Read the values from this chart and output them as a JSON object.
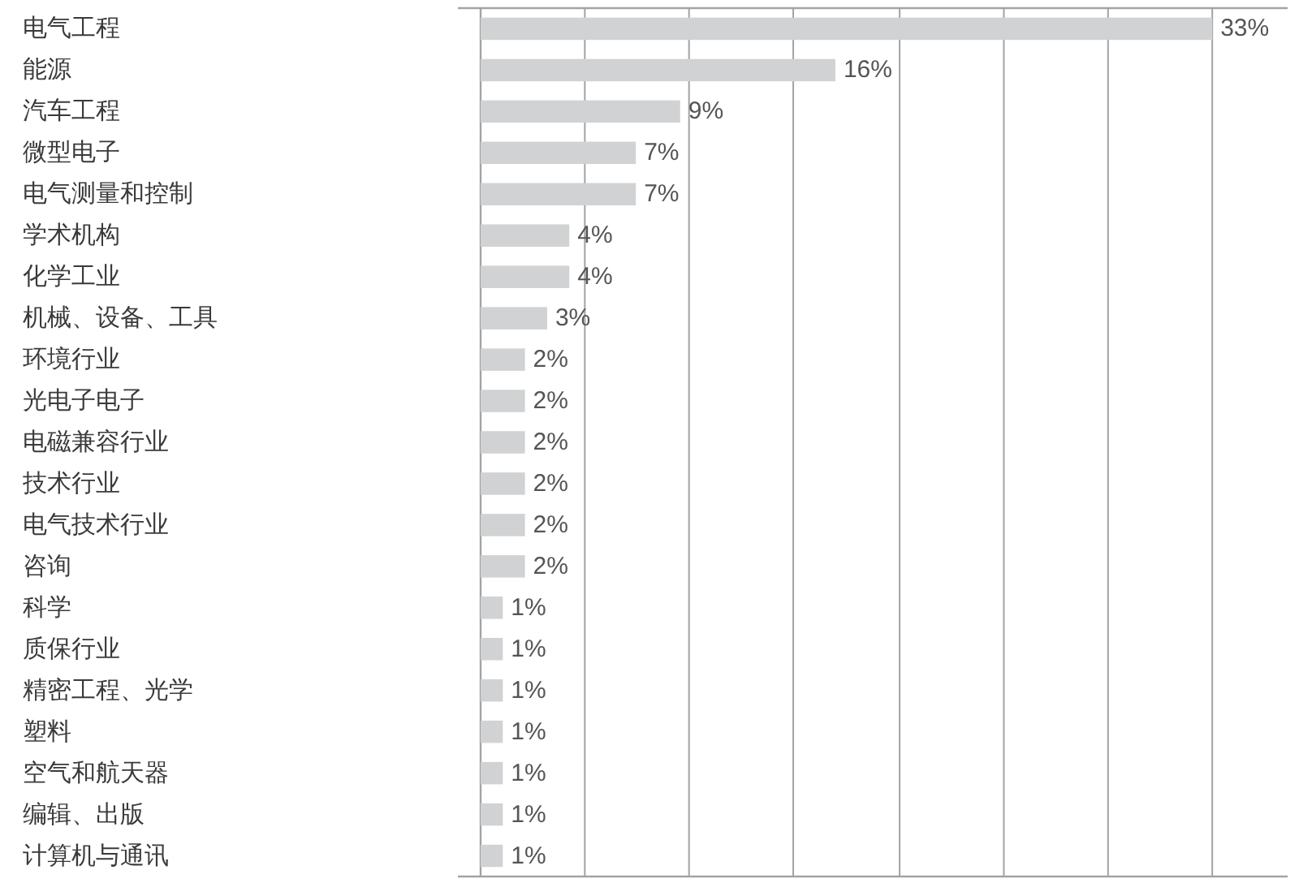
{
  "chart_data": {
    "type": "bar",
    "orientation": "horizontal",
    "categories": [
      "电气工程",
      "能源",
      "汽车工程",
      "微型电子",
      "电气测量和控制",
      "学术机构",
      "化学工业",
      "机械、设备、工具",
      "环境行业",
      "光电子电子",
      "电磁兼容行业",
      "技术行业",
      "电气技术行业",
      "咨询",
      "科学",
      "质保行业",
      "精密工程、光学",
      "塑料",
      "空气和航天器",
      "编辑、出版",
      "计算机与通讯"
    ],
    "values": [
      33,
      16,
      9,
      7,
      7,
      4,
      4,
      3,
      2,
      2,
      2,
      2,
      2,
      2,
      1,
      1,
      1,
      1,
      1,
      1,
      1
    ],
    "value_labels": [
      "33%",
      "16%",
      "9%",
      "7%",
      "7%",
      "4%",
      "4%",
      "3%",
      "2%",
      "2%",
      "2%",
      "2%",
      "2%",
      "2%",
      "1%",
      "1%",
      "1%",
      "1%",
      "1%",
      "1%",
      "1%"
    ],
    "color": "#d1d2d4",
    "xlim": [
      0,
      36.4
    ],
    "xticks": [
      {
        "value": 4.7,
        "label": null
      },
      {
        "value": 9.4,
        "label": null
      },
      {
        "value": 14.1,
        "label": null
      },
      {
        "value": 18.9,
        "label": null
      },
      {
        "value": 23.6,
        "label": null
      },
      {
        "value": 28.3,
        "label": null
      },
      {
        "value": 33,
        "label": null
      }
    ],
    "grid": "x",
    "tick_labels": "y"
  }
}
